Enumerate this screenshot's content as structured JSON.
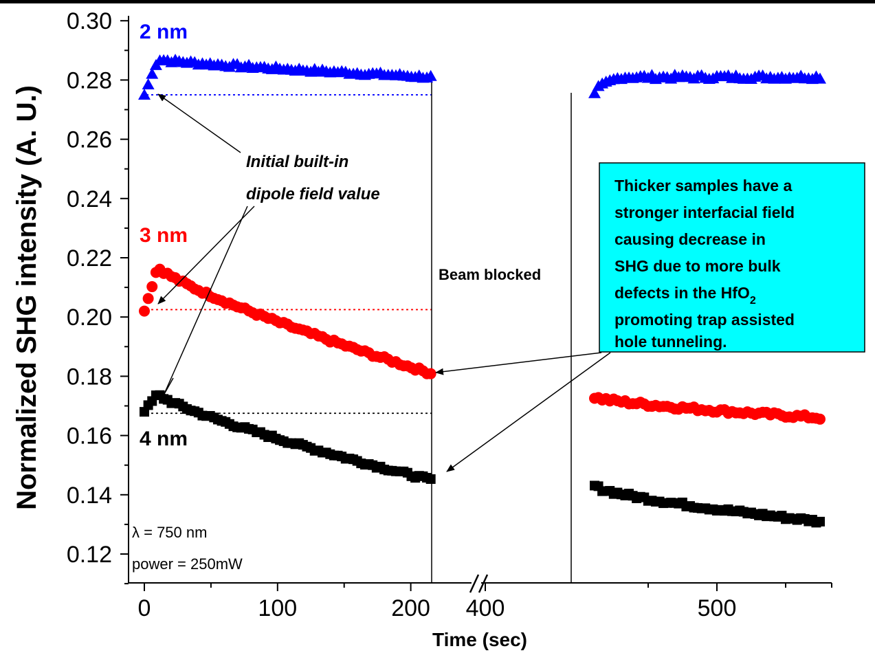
{
  "chart_data": {
    "type": "scatter",
    "xlabel": "Time (sec)",
    "ylabel": "Normalized SHG intensity (A. U.)",
    "ylim": [
      0.11,
      0.3
    ],
    "y_ticks": [
      "0.12",
      "0.14",
      "0.16",
      "0.18",
      "0.20",
      "0.22",
      "0.24",
      "0.26",
      "0.28",
      "0.30"
    ],
    "x_ticks_left": [
      "0",
      "100",
      "200"
    ],
    "x_ticks_right": [
      "400",
      "500"
    ],
    "x_axis_broken": true,
    "series": [
      {
        "name": "2 nm",
        "color": "#0000ff",
        "marker": "triangle",
        "segment1": {
          "t_start": 0,
          "t_end": 215,
          "count": 75,
          "y_start": 0.275,
          "y_peak": 0.287,
          "y_end": 0.281
        },
        "segment2": {
          "t_start": 411,
          "t_end": 575,
          "count": 60,
          "y_start": 0.275,
          "y_plateau": 0.281,
          "y_end": 0.281
        },
        "baseline": 0.275
      },
      {
        "name": "3 nm",
        "color": "#ff0000",
        "marker": "circle",
        "segment1": {
          "t_start": 0,
          "t_end": 215,
          "count": 75,
          "y_start": 0.202,
          "y_peak": 0.217,
          "y_end": 0.181
        },
        "segment2": {
          "t_start": 411,
          "t_end": 575,
          "count": 60,
          "y_start": 0.173,
          "y_end": 0.166
        },
        "baseline": 0.2025
      },
      {
        "name": "4 nm",
        "color": "#000000",
        "marker": "square",
        "segment1": {
          "t_start": 0,
          "t_end": 215,
          "count": 75,
          "y_start": 0.168,
          "y_peak": 0.174,
          "y_end": 0.145
        },
        "segment2": {
          "t_start": 411,
          "t_end": 575,
          "count": 60,
          "y_start": 0.143,
          "y_end": 0.131
        },
        "baseline": 0.1675
      }
    ],
    "annotations": {
      "initial_line1": "Initial built-in",
      "initial_line2": "dipole field value",
      "beam_blocked": "Beam blocked",
      "lambda": "λ = 750 nm",
      "power": "power = 250mW",
      "callout_lines": [
        "Thicker samples have a",
        "stronger interfacial field",
        "causing decrease in",
        "SHG due to more bulk",
        "defects in the HfO",
        "promoting trap assisted",
        "hole tunneling."
      ],
      "callout_subscript": "2",
      "callout_color": "#00ffff"
    }
  }
}
